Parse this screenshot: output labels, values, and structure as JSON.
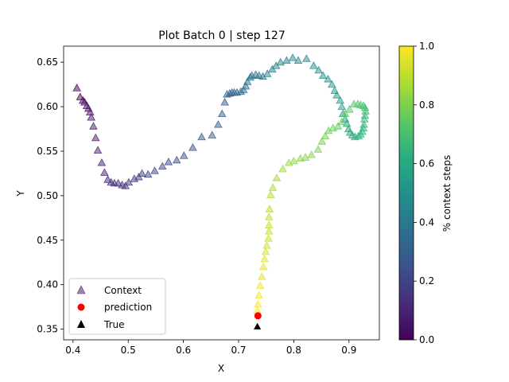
{
  "chart_data": {
    "type": "scatter",
    "title": "Plot Batch 0 | step 127",
    "xlabel": "X",
    "ylabel": "Y",
    "xlim": [
      0.383,
      0.955
    ],
    "ylim": [
      0.338,
      0.668
    ],
    "xticks": [
      {
        "value": 0.4,
        "label": "0.4"
      },
      {
        "value": 0.5,
        "label": "0.5"
      },
      {
        "value": 0.6,
        "label": "0.6"
      },
      {
        "value": 0.7,
        "label": "0.7"
      },
      {
        "value": 0.8,
        "label": "0.8"
      },
      {
        "value": 0.9,
        "label": "0.9"
      }
    ],
    "yticks": [
      {
        "value": 0.35,
        "label": "0.35"
      },
      {
        "value": 0.4,
        "label": "0.40"
      },
      {
        "value": 0.45,
        "label": "0.45"
      },
      {
        "value": 0.5,
        "label": "0.50"
      },
      {
        "value": 0.55,
        "label": "0.55"
      },
      {
        "value": 0.6,
        "label": "0.60"
      },
      {
        "value": 0.65,
        "label": "0.65"
      }
    ],
    "grid": false,
    "legend_position": "lower-left",
    "colorbar": {
      "label": "% context steps",
      "colormap": "viridis",
      "range": [
        0.0,
        1.0
      ],
      "ticks": [
        {
          "value": 0.0,
          "label": "0.0"
        },
        {
          "value": 0.2,
          "label": "0.2"
        },
        {
          "value": 0.4,
          "label": "0.4"
        },
        {
          "value": 0.6,
          "label": "0.6"
        },
        {
          "value": 0.8,
          "label": "0.8"
        },
        {
          "value": 1.0,
          "label": "1.0"
        }
      ]
    },
    "series": [
      {
        "name": "Context",
        "marker": "triangle",
        "opacity": 0.5,
        "colored_by": "% context steps",
        "points": [
          [
            0.407,
            0.621
          ],
          [
            0.413,
            0.611
          ],
          [
            0.418,
            0.607
          ],
          [
            0.421,
            0.605
          ],
          [
            0.425,
            0.601
          ],
          [
            0.428,
            0.598
          ],
          [
            0.431,
            0.594
          ],
          [
            0.433,
            0.588
          ],
          [
            0.437,
            0.578
          ],
          [
            0.441,
            0.565
          ],
          [
            0.445,
            0.551
          ],
          [
            0.452,
            0.537
          ],
          [
            0.457,
            0.526
          ],
          [
            0.463,
            0.518
          ],
          [
            0.469,
            0.515
          ],
          [
            0.475,
            0.514
          ],
          [
            0.482,
            0.514
          ],
          [
            0.489,
            0.512
          ],
          [
            0.495,
            0.511
          ],
          [
            0.501,
            0.515
          ],
          [
            0.511,
            0.519
          ],
          [
            0.519,
            0.521
          ],
          [
            0.525,
            0.525
          ],
          [
            0.536,
            0.524
          ],
          [
            0.548,
            0.528
          ],
          [
            0.562,
            0.533
          ],
          [
            0.573,
            0.538
          ],
          [
            0.588,
            0.54
          ],
          [
            0.601,
            0.545
          ],
          [
            0.617,
            0.554
          ],
          [
            0.633,
            0.566
          ],
          [
            0.652,
            0.568
          ],
          [
            0.663,
            0.58
          ],
          [
            0.67,
            0.592
          ],
          [
            0.675,
            0.605
          ],
          [
            0.679,
            0.614
          ],
          [
            0.684,
            0.615
          ],
          [
            0.688,
            0.616
          ],
          [
            0.692,
            0.616
          ],
          [
            0.697,
            0.616
          ],
          [
            0.704,
            0.617
          ],
          [
            0.709,
            0.619
          ],
          [
            0.713,
            0.623
          ],
          [
            0.716,
            0.628
          ],
          [
            0.721,
            0.633
          ],
          [
            0.724,
            0.635
          ],
          [
            0.731,
            0.636
          ],
          [
            0.737,
            0.635
          ],
          [
            0.744,
            0.634
          ],
          [
            0.752,
            0.637
          ],
          [
            0.761,
            0.642
          ],
          [
            0.768,
            0.646
          ],
          [
            0.776,
            0.65
          ],
          [
            0.787,
            0.652
          ],
          [
            0.798,
            0.655
          ],
          [
            0.808,
            0.652
          ],
          [
            0.823,
            0.654
          ],
          [
            0.836,
            0.646
          ],
          [
            0.845,
            0.641
          ],
          [
            0.853,
            0.635
          ],
          [
            0.862,
            0.631
          ],
          [
            0.869,
            0.625
          ],
          [
            0.874,
            0.618
          ],
          [
            0.878,
            0.613
          ],
          [
            0.884,
            0.607
          ],
          [
            0.887,
            0.6
          ],
          [
            0.889,
            0.592
          ],
          [
            0.893,
            0.586
          ],
          [
            0.896,
            0.581
          ],
          [
            0.899,
            0.575
          ],
          [
            0.902,
            0.571
          ],
          [
            0.906,
            0.568
          ],
          [
            0.911,
            0.566
          ],
          [
            0.917,
            0.567
          ],
          [
            0.921,
            0.569
          ],
          [
            0.924,
            0.572
          ],
          [
            0.926,
            0.576
          ],
          [
            0.927,
            0.58
          ],
          [
            0.928,
            0.586
          ],
          [
            0.929,
            0.59
          ],
          [
            0.93,
            0.595
          ],
          [
            0.929,
            0.599
          ],
          [
            0.926,
            0.601
          ],
          [
            0.921,
            0.602
          ],
          [
            0.916,
            0.603
          ],
          [
            0.909,
            0.603
          ],
          [
            0.901,
            0.597
          ],
          [
            0.893,
            0.592
          ],
          [
            0.887,
            0.583
          ],
          [
            0.88,
            0.578
          ],
          [
            0.871,
            0.576
          ],
          [
            0.863,
            0.573
          ],
          [
            0.857,
            0.567
          ],
          [
            0.851,
            0.561
          ],
          [
            0.844,
            0.552
          ],
          [
            0.832,
            0.546
          ],
          [
            0.821,
            0.543
          ],
          [
            0.812,
            0.542
          ],
          [
            0.8,
            0.539
          ],
          [
            0.791,
            0.537
          ],
          [
            0.78,
            0.53
          ],
          [
            0.769,
            0.52
          ],
          [
            0.762,
            0.509
          ],
          [
            0.758,
            0.501
          ],
          [
            0.756,
            0.485
          ],
          [
            0.755,
            0.476
          ],
          [
            0.755,
            0.467
          ],
          [
            0.755,
            0.46
          ],
          [
            0.754,
            0.452
          ],
          [
            0.751,
            0.444
          ],
          [
            0.749,
            0.437
          ],
          [
            0.747,
            0.429
          ],
          [
            0.745,
            0.42
          ],
          [
            0.742,
            0.409
          ],
          [
            0.739,
            0.399
          ],
          [
            0.737,
            0.388
          ],
          [
            0.735,
            0.378
          ],
          [
            0.734,
            0.371
          ]
        ]
      },
      {
        "name": "prediction",
        "marker": "circle",
        "color": "#ff0000",
        "points": [
          [
            0.735,
            0.365
          ]
        ]
      },
      {
        "name": "True",
        "marker": "triangle",
        "color": "#000000",
        "points": [
          [
            0.734,
            0.353
          ]
        ]
      }
    ]
  }
}
